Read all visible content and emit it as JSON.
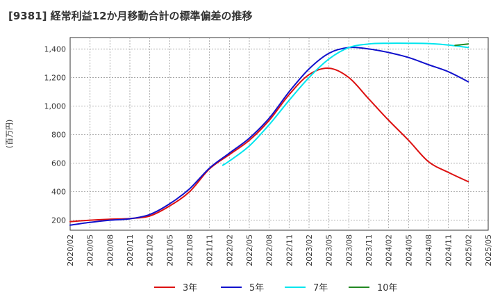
{
  "chart_data": {
    "type": "line",
    "title": "[9381]  経常利益12か月移動合計の標準偏差の推移",
    "ylabel": "(百万円)",
    "xlabel": "",
    "ylim": [
      130,
      1480
    ],
    "yticks": [
      200,
      400,
      600,
      800,
      1000,
      1200,
      1400
    ],
    "ytick_labels": [
      "200",
      "400",
      "600",
      "800",
      "1,000",
      "1,200",
      "1,400"
    ],
    "x_categories": [
      "2020/02",
      "2020/05",
      "2020/08",
      "2020/11",
      "2021/02",
      "2021/05",
      "2021/08",
      "2021/11",
      "2022/02",
      "2022/05",
      "2022/08",
      "2022/11",
      "2023/02",
      "2023/05",
      "2023/08",
      "2023/11",
      "2024/02",
      "2024/05",
      "2024/08",
      "2024/11",
      "2025/02",
      "2025/05"
    ],
    "grid": true,
    "legend_position": "bottom",
    "series": [
      {
        "name": "3年",
        "color": "#dd1111",
        "x": [
          "2020/02",
          "2020/05",
          "2020/08",
          "2020/11",
          "2021/02",
          "2021/05",
          "2021/08",
          "2021/11",
          "2022/02",
          "2022/05",
          "2022/08",
          "2022/11",
          "2023/02",
          "2023/05",
          "2023/08",
          "2023/11",
          "2024/02",
          "2024/05",
          "2024/08",
          "2024/11",
          "2025/02"
        ],
        "values": [
          190,
          200,
          207,
          212,
          230,
          300,
          400,
          560,
          660,
          760,
          900,
          1080,
          1220,
          1265,
          1200,
          1050,
          900,
          760,
          610,
          535,
          470
        ]
      },
      {
        "name": "5年",
        "color": "#1111cc",
        "x": [
          "2020/02",
          "2020/05",
          "2020/08",
          "2020/11",
          "2021/02",
          "2021/05",
          "2021/08",
          "2021/11",
          "2022/02",
          "2022/05",
          "2022/08",
          "2022/11",
          "2023/02",
          "2023/05",
          "2023/08",
          "2023/11",
          "2024/02",
          "2024/05",
          "2024/08",
          "2024/11",
          "2025/02"
        ],
        "values": [
          165,
          185,
          200,
          210,
          240,
          315,
          420,
          565,
          670,
          775,
          915,
          1100,
          1260,
          1370,
          1410,
          1400,
          1375,
          1340,
          1290,
          1240,
          1170
        ]
      },
      {
        "name": "7年",
        "color": "#00e5ee",
        "x": [
          "2022/01",
          "2022/02",
          "2022/05",
          "2022/08",
          "2022/11",
          "2023/02",
          "2023/05",
          "2023/08",
          "2023/11",
          "2024/02",
          "2024/05",
          "2024/08",
          "2024/11",
          "2025/02"
        ],
        "values": [
          585,
          615,
          720,
          870,
          1040,
          1200,
          1330,
          1410,
          1435,
          1440,
          1440,
          1438,
          1428,
          1410
        ]
      },
      {
        "name": "10年",
        "color": "#228822",
        "x": [
          "2024/12",
          "2025/02"
        ],
        "values": [
          1425,
          1435
        ]
      }
    ]
  }
}
